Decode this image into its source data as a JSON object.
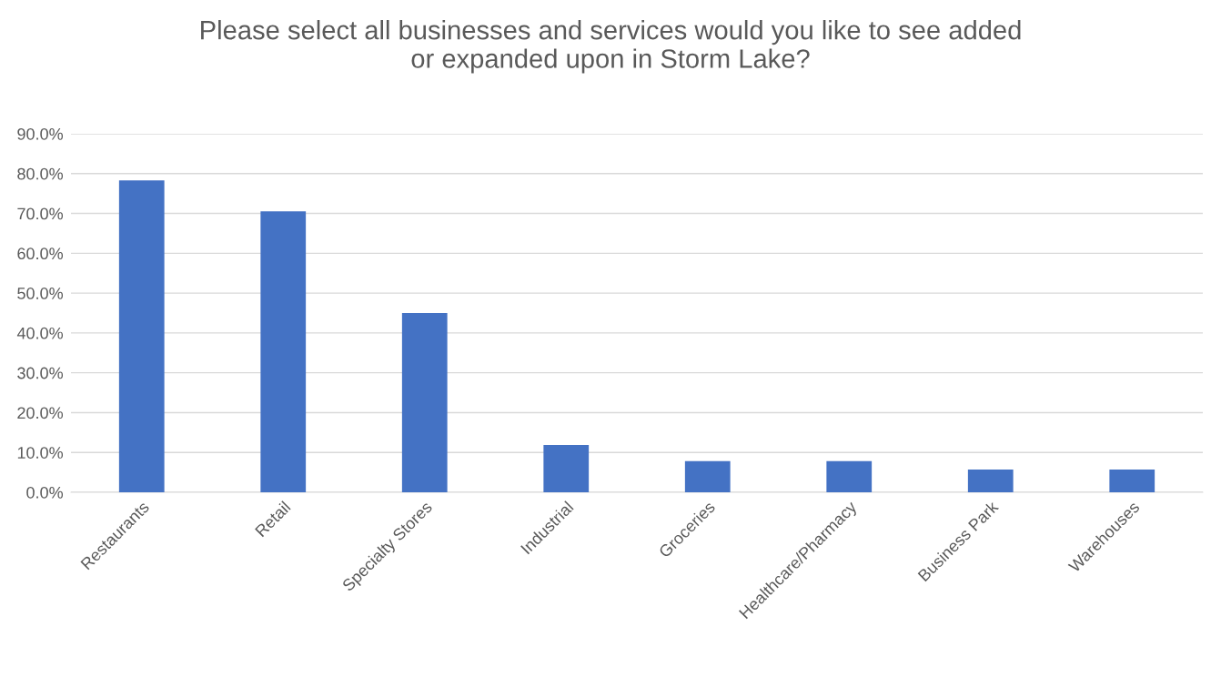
{
  "chart_data": {
    "type": "bar",
    "title": "Please select all businesses and services would you like to see added\nor expanded upon in Storm Lake?",
    "categories": [
      "Restaurants",
      "Retail",
      "Specialty Stores",
      "Industrial",
      "Groceries",
      "Healthcare/Pharmacy",
      "Business Park",
      "Warehouses"
    ],
    "values": [
      78.3,
      70.5,
      45.0,
      11.9,
      7.8,
      7.8,
      5.7,
      5.7
    ],
    "color": "#4472c4",
    "ylim": [
      0,
      90
    ],
    "yticks": [
      {
        "value": 0,
        "label": "0.0%"
      },
      {
        "value": 10,
        "label": "10.0%"
      },
      {
        "value": 20,
        "label": "20.0%"
      },
      {
        "value": 30,
        "label": "30.0%"
      },
      {
        "value": 40,
        "label": "40.0%"
      },
      {
        "value": 50,
        "label": "50.0%"
      },
      {
        "value": 60,
        "label": "60.0%"
      },
      {
        "value": 70,
        "label": "70.0%"
      },
      {
        "value": 80,
        "label": "80.0%"
      },
      {
        "value": 90,
        "label": "90.0%"
      }
    ],
    "grid": "y"
  }
}
